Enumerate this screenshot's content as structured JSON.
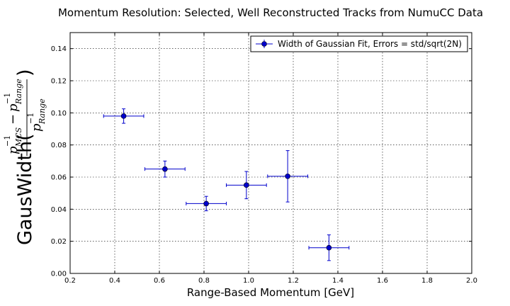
{
  "chart_data": {
    "type": "scatter",
    "title": "Momentum Resolution: Selected, Well Reconstructed Tracks from NumuCC Data",
    "xlabel": "Range-Based Momentum [GeV]",
    "ylabel": {
      "prefix": "GausWidth(",
      "p": "p",
      "sup": "−1",
      "sub_mcs": "MCS",
      "minus": "−",
      "sub_range": "Range",
      "suffix": ")"
    },
    "xlim": [
      0.2,
      2.0
    ],
    "ylim": [
      0.0,
      0.15
    ],
    "xticks": [
      "0.2",
      "0.4",
      "0.6",
      "0.8",
      "1.0",
      "1.2",
      "1.4",
      "1.6",
      "1.8",
      "2.0"
    ],
    "yticks": [
      "0.00",
      "0.02",
      "0.04",
      "0.06",
      "0.08",
      "0.10",
      "0.12",
      "0.14"
    ],
    "grid": true,
    "legend_position": "upper-right",
    "series": [
      {
        "name": "Width of Gaussian Fit, Errors = std/sqrt(2N)",
        "color": "#0000cc",
        "points": [
          {
            "x": 0.44,
            "y": 0.098,
            "xerr": 0.09,
            "yerr": 0.0045
          },
          {
            "x": 0.625,
            "y": 0.065,
            "xerr": 0.09,
            "yerr": 0.005
          },
          {
            "x": 0.81,
            "y": 0.0435,
            "xerr": 0.09,
            "yerr": 0.0045
          },
          {
            "x": 0.99,
            "y": 0.055,
            "xerr": 0.09,
            "yerr": 0.0085
          },
          {
            "x": 1.175,
            "y": 0.0605,
            "xerr": 0.09,
            "yerr": 0.016
          },
          {
            "x": 1.36,
            "y": 0.016,
            "xerr": 0.09,
            "yerr": 0.008
          }
        ]
      }
    ]
  }
}
